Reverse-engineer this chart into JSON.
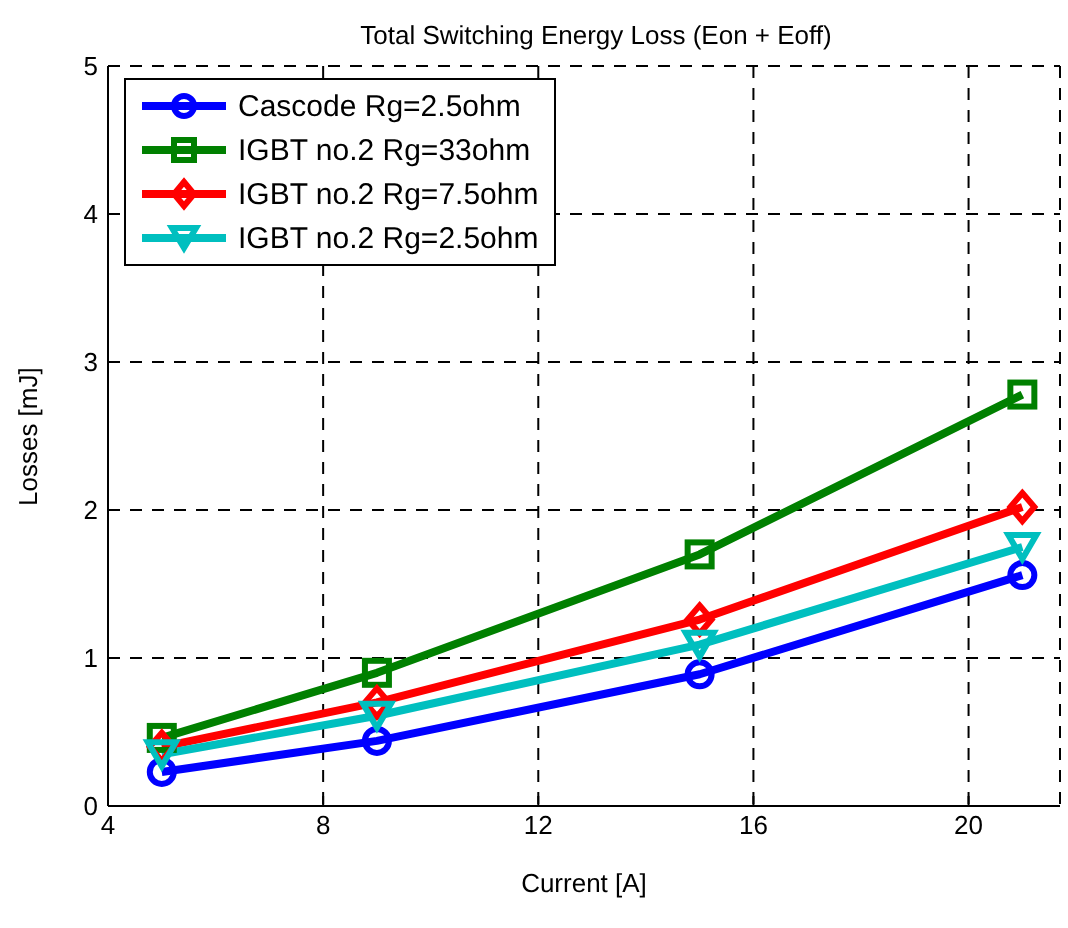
{
  "chart_data": {
    "type": "line",
    "title": "Total Switching Energy Loss (Eon + Eoff)",
    "xlabel": "Current [A]",
    "ylabel": "Losses [mJ]",
    "x": [
      5,
      9,
      15,
      21
    ],
    "series": [
      {
        "name": "Cascode Rg=2.5ohm",
        "color": "#0000ff",
        "marker": "circle",
        "values": [
          0.23,
          0.44,
          0.89,
          1.56
        ]
      },
      {
        "name": "IGBT no.2 Rg=33ohm",
        "color": "#008000",
        "marker": "square",
        "values": [
          0.46,
          0.9,
          1.7,
          2.78
        ]
      },
      {
        "name": "IGBT no.2 Rg=7.5ohm",
        "color": "#ff0000",
        "marker": "diamond",
        "values": [
          0.4,
          0.7,
          1.26,
          2.02
        ]
      },
      {
        "name": "IGBT no.2 Rg=2.5ohm",
        "color": "#00bfbf",
        "marker": "triangle",
        "values": [
          0.35,
          0.61,
          1.09,
          1.75
        ]
      }
    ],
    "xlim": [
      4,
      21.7
    ],
    "xticks": [
      4,
      8,
      12,
      16,
      20
    ],
    "ylim": [
      0,
      5
    ],
    "yticks": [
      0,
      1,
      2,
      3,
      4,
      5
    ],
    "grid": true,
    "legend": "top left"
  }
}
